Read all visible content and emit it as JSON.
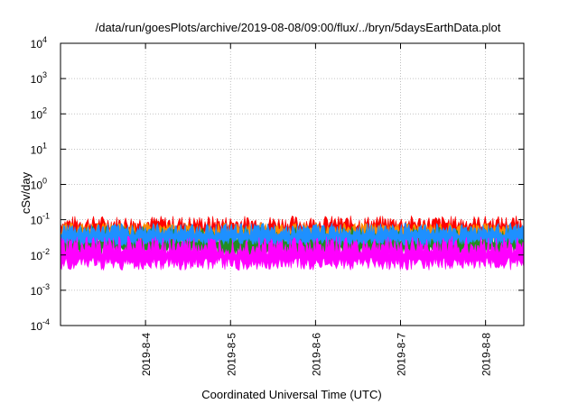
{
  "chart_data": {
    "type": "area",
    "title": "/data/run/goesPlots/archive/2019-08-08/09:00/flux/../bryn/5daysEarthData.plot",
    "xlabel": "Coordinated Universal Time (UTC)",
    "ylabel": "cSv/day",
    "yscale": "log",
    "ylim": [
      0.0001,
      10000
    ],
    "xlim": [
      -1.0,
      4.45
    ],
    "x_unit": "days from 2019-8-4",
    "grid": true,
    "y_ticks": [
      {
        "mantissa": "10",
        "exp": "-4"
      },
      {
        "mantissa": "10",
        "exp": "-3"
      },
      {
        "mantissa": "10",
        "exp": "-2"
      },
      {
        "mantissa": "10",
        "exp": "-1"
      },
      {
        "mantissa": "10",
        "exp": "0"
      },
      {
        "mantissa": "10",
        "exp": "1"
      },
      {
        "mantissa": "10",
        "exp": "2"
      },
      {
        "mantissa": "10",
        "exp": "3"
      },
      {
        "mantissa": "10",
        "exp": "4"
      }
    ],
    "x_ticks": [
      "2019-8-4",
      "2019-8-5",
      "2019-8-6",
      "2019-8-7",
      "2019-8-8"
    ],
    "series": [
      {
        "color": "#ff0000",
        "baseline": 0.06,
        "spread": 0.45
      },
      {
        "color": "#ff8c00",
        "baseline": 0.045,
        "spread": 0.35
      },
      {
        "color": "#228b22",
        "baseline": 0.025,
        "spread": 0.55
      },
      {
        "color": "#1e90ff",
        "baseline": 0.04,
        "spread": 0.4
      },
      {
        "color": "#ff00ff",
        "baseline": 0.012,
        "spread": 0.6
      }
    ]
  }
}
